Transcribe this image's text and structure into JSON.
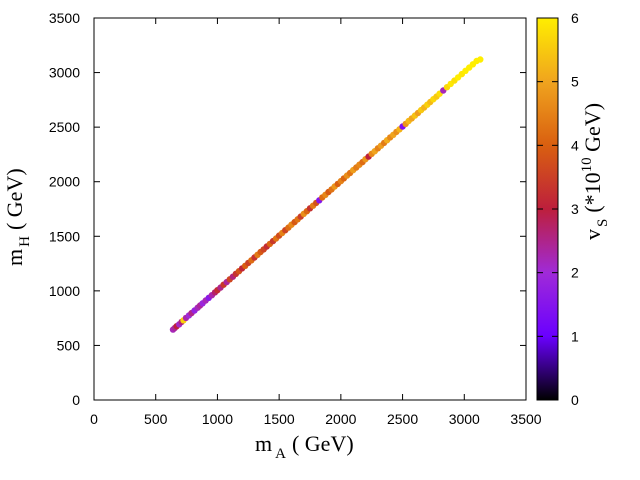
{
  "chart_data": {
    "type": "scatter",
    "title": "",
    "xlabel": "m_A ( GeV)",
    "ylabel": "m_H ( GeV)",
    "x_axis": {
      "symbol": "m",
      "subscript": "A",
      "unit": "( GeV)",
      "range": [
        0,
        3500
      ],
      "ticks": [
        "0",
        "500",
        "1000",
        "1500",
        "2000",
        "2500",
        "3000",
        "3500"
      ]
    },
    "y_axis": {
      "symbol": "m",
      "subscript": "H",
      "unit": "( GeV)",
      "range": [
        0,
        3500
      ],
      "ticks": [
        "0",
        "500",
        "1000",
        "1500",
        "2000",
        "2500",
        "3000",
        "3500"
      ]
    },
    "colorbar": {
      "symbol": "v",
      "subscript": "S",
      "unit_prefix": "(*10",
      "unit_exp": "10",
      "unit_suffix": " GeV)",
      "range": [
        0,
        6
      ],
      "ticks": [
        "0",
        "1",
        "2",
        "3",
        "4",
        "5",
        "6"
      ],
      "palette": [
        "#000000",
        "#6a00ff",
        "#a02ad8",
        "#bd1f3c",
        "#d95f10",
        "#f0a41e",
        "#ffee00"
      ]
    },
    "grid": false,
    "points": [
      {
        "x": 640,
        "y": 645,
        "c": 2.2
      },
      {
        "x": 655,
        "y": 660,
        "c": 2.4
      },
      {
        "x": 670,
        "y": 676,
        "c": 3.0
      },
      {
        "x": 690,
        "y": 694,
        "c": 2.1
      },
      {
        "x": 710,
        "y": 716,
        "c": 2.6
      },
      {
        "x": 725,
        "y": 730,
        "c": 5.6
      },
      {
        "x": 745,
        "y": 752,
        "c": 2.3
      },
      {
        "x": 770,
        "y": 775,
        "c": 2.0
      },
      {
        "x": 790,
        "y": 796,
        "c": 2.5
      },
      {
        "x": 815,
        "y": 820,
        "c": 1.8
      },
      {
        "x": 840,
        "y": 846,
        "c": 2.2
      },
      {
        "x": 860,
        "y": 866,
        "c": 2.4
      },
      {
        "x": 880,
        "y": 886,
        "c": 1.9
      },
      {
        "x": 905,
        "y": 912,
        "c": 2.2
      },
      {
        "x": 930,
        "y": 936,
        "c": 1.6
      },
      {
        "x": 955,
        "y": 960,
        "c": 2.3
      },
      {
        "x": 980,
        "y": 986,
        "c": 2.7
      },
      {
        "x": 1000,
        "y": 1006,
        "c": 3.2
      },
      {
        "x": 1025,
        "y": 1030,
        "c": 2.5
      },
      {
        "x": 1050,
        "y": 1056,
        "c": 3.4
      },
      {
        "x": 1075,
        "y": 1080,
        "c": 2.4
      },
      {
        "x": 1100,
        "y": 1106,
        "c": 3.6
      },
      {
        "x": 1125,
        "y": 1130,
        "c": 2.6
      },
      {
        "x": 1150,
        "y": 1156,
        "c": 3.3
      },
      {
        "x": 1175,
        "y": 1180,
        "c": 3.8
      },
      {
        "x": 1200,
        "y": 1206,
        "c": 3.1
      },
      {
        "x": 1225,
        "y": 1230,
        "c": 4.0
      },
      {
        "x": 1250,
        "y": 1256,
        "c": 3.5
      },
      {
        "x": 1275,
        "y": 1280,
        "c": 4.2
      },
      {
        "x": 1300,
        "y": 1306,
        "c": 3.3
      },
      {
        "x": 1325,
        "y": 1330,
        "c": 4.4
      },
      {
        "x": 1350,
        "y": 1356,
        "c": 3.9
      },
      {
        "x": 1375,
        "y": 1380,
        "c": 3.6
      },
      {
        "x": 1400,
        "y": 1406,
        "c": 3.2
      },
      {
        "x": 1425,
        "y": 1430,
        "c": 4.1
      },
      {
        "x": 1450,
        "y": 1456,
        "c": 3.4
      },
      {
        "x": 1475,
        "y": 1480,
        "c": 4.3
      },
      {
        "x": 1500,
        "y": 1506,
        "c": 3.7
      },
      {
        "x": 1525,
        "y": 1530,
        "c": 4.5
      },
      {
        "x": 1550,
        "y": 1556,
        "c": 3.6
      },
      {
        "x": 1575,
        "y": 1580,
        "c": 4.2
      },
      {
        "x": 1600,
        "y": 1606,
        "c": 4.6
      },
      {
        "x": 1625,
        "y": 1630,
        "c": 3.9
      },
      {
        "x": 1650,
        "y": 1656,
        "c": 4.3
      },
      {
        "x": 1675,
        "y": 1680,
        "c": 3.5
      },
      {
        "x": 1700,
        "y": 1706,
        "c": 4.7
      },
      {
        "x": 1725,
        "y": 1730,
        "c": 4.1
      },
      {
        "x": 1750,
        "y": 1756,
        "c": 3.3
      },
      {
        "x": 1775,
        "y": 1780,
        "c": 4.4
      },
      {
        "x": 1800,
        "y": 1806,
        "c": 3.8
      },
      {
        "x": 1825,
        "y": 1830,
        "c": 1.5
      },
      {
        "x": 1850,
        "y": 1856,
        "c": 4.2
      },
      {
        "x": 1875,
        "y": 1880,
        "c": 4.6
      },
      {
        "x": 1900,
        "y": 1906,
        "c": 3.9
      },
      {
        "x": 1925,
        "y": 1930,
        "c": 4.3
      },
      {
        "x": 1950,
        "y": 1956,
        "c": 4.8
      },
      {
        "x": 1975,
        "y": 1980,
        "c": 4.0
      },
      {
        "x": 2000,
        "y": 2006,
        "c": 4.5
      },
      {
        "x": 2025,
        "y": 2030,
        "c": 4.1
      },
      {
        "x": 2050,
        "y": 2056,
        "c": 4.7
      },
      {
        "x": 2075,
        "y": 2080,
        "c": 4.3
      },
      {
        "x": 2100,
        "y": 2106,
        "c": 4.9
      },
      {
        "x": 2125,
        "y": 2130,
        "c": 4.4
      },
      {
        "x": 2150,
        "y": 2156,
        "c": 4.6
      },
      {
        "x": 2175,
        "y": 2180,
        "c": 4.2
      },
      {
        "x": 2200,
        "y": 2206,
        "c": 4.8
      },
      {
        "x": 2225,
        "y": 2230,
        "c": 3.0
      },
      {
        "x": 2250,
        "y": 2256,
        "c": 4.6
      },
      {
        "x": 2275,
        "y": 2280,
        "c": 5.0
      },
      {
        "x": 2300,
        "y": 2306,
        "c": 4.5
      },
      {
        "x": 2325,
        "y": 2330,
        "c": 4.9
      },
      {
        "x": 2350,
        "y": 2356,
        "c": 4.4
      },
      {
        "x": 2375,
        "y": 2380,
        "c": 5.1
      },
      {
        "x": 2400,
        "y": 2406,
        "c": 4.6
      },
      {
        "x": 2425,
        "y": 2430,
        "c": 5.0
      },
      {
        "x": 2450,
        "y": 2456,
        "c": 4.7
      },
      {
        "x": 2475,
        "y": 2480,
        "c": 5.2
      },
      {
        "x": 2500,
        "y": 2506,
        "c": 1.4
      },
      {
        "x": 2525,
        "y": 2530,
        "c": 4.8
      },
      {
        "x": 2550,
        "y": 2556,
        "c": 5.3
      },
      {
        "x": 2575,
        "y": 2580,
        "c": 5.0
      },
      {
        "x": 2600,
        "y": 2606,
        "c": 5.4
      },
      {
        "x": 2625,
        "y": 2630,
        "c": 4.9
      },
      {
        "x": 2650,
        "y": 2656,
        "c": 5.5
      },
      {
        "x": 2675,
        "y": 2680,
        "c": 5.2
      },
      {
        "x": 2700,
        "y": 2706,
        "c": 5.6
      },
      {
        "x": 2725,
        "y": 2730,
        "c": 5.3
      },
      {
        "x": 2750,
        "y": 2756,
        "c": 5.7
      },
      {
        "x": 2775,
        "y": 2780,
        "c": 5.5
      },
      {
        "x": 2800,
        "y": 2806,
        "c": 5.8
      },
      {
        "x": 2830,
        "y": 2836,
        "c": 2.2
      },
      {
        "x": 2860,
        "y": 2866,
        "c": 5.7
      },
      {
        "x": 2890,
        "y": 2896,
        "c": 5.9
      },
      {
        "x": 2920,
        "y": 2926,
        "c": 5.8
      },
      {
        "x": 2950,
        "y": 2956,
        "c": 6.0
      },
      {
        "x": 2980,
        "y": 2986,
        "c": 5.9
      },
      {
        "x": 3010,
        "y": 3016,
        "c": 6.0
      },
      {
        "x": 3040,
        "y": 3046,
        "c": 6.0
      },
      {
        "x": 3070,
        "y": 3076,
        "c": 6.0
      },
      {
        "x": 3100,
        "y": 3106,
        "c": 6.0
      },
      {
        "x": 3130,
        "y": 3120,
        "c": 6.0
      }
    ]
  }
}
